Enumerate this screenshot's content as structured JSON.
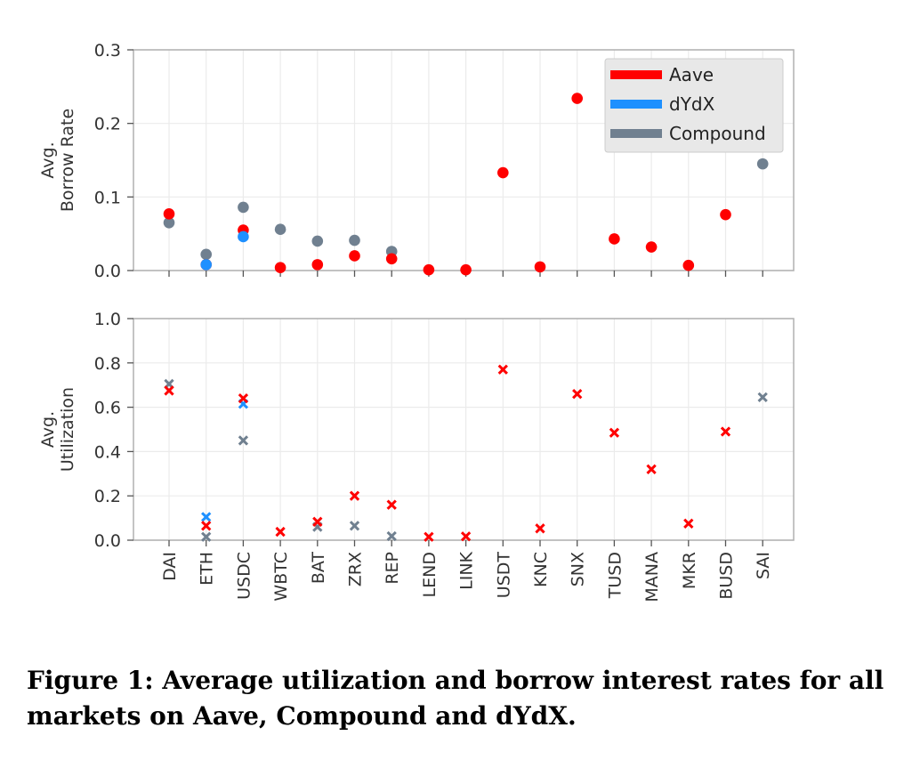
{
  "caption": "Figure 1: Average utilization and borrow interest rates for all markets on Aave, Compound and dYdX.",
  "colors": {
    "Aave": "#ff0000",
    "dYdX": "#1e90ff",
    "Compound": "#708090"
  },
  "chart_data": [
    {
      "type": "scatter",
      "marker": "circle",
      "ylabel": [
        "Avg.",
        "Borrow Rate"
      ],
      "ylim": [
        0,
        0.3
      ],
      "yticks": [
        "0.0",
        "0.1",
        "0.2",
        "0.3"
      ],
      "categories": [
        "DAI",
        "ETH",
        "USDC",
        "WBTC",
        "BAT",
        "ZRX",
        "REP",
        "LEND",
        "LINK",
        "USDT",
        "KNC",
        "SNX",
        "TUSD",
        "MANA",
        "MKR",
        "BUSD",
        "SAI"
      ],
      "grid": true,
      "legend": {
        "placement": "top-right",
        "entries": [
          "Aave",
          "dYdX",
          "Compound"
        ]
      },
      "series": [
        {
          "name": "Compound",
          "values": [
            0.065,
            0.022,
            0.086,
            0.056,
            0.04,
            0.041,
            0.026,
            null,
            null,
            null,
            null,
            null,
            null,
            null,
            null,
            null,
            0.145
          ]
        },
        {
          "name": "Aave",
          "values": [
            0.077,
            0.008,
            0.055,
            0.004,
            0.008,
            0.02,
            0.016,
            0.001,
            0.001,
            0.133,
            0.005,
            0.234,
            0.043,
            0.032,
            0.007,
            0.076,
            null
          ]
        },
        {
          "name": "dYdX",
          "values": [
            null,
            0.008,
            0.046,
            null,
            null,
            null,
            null,
            null,
            null,
            null,
            null,
            null,
            null,
            null,
            null,
            null,
            null
          ]
        }
      ]
    },
    {
      "type": "scatter",
      "marker": "x",
      "ylabel": [
        "Avg.",
        "Utilization"
      ],
      "ylim": [
        0,
        1.0
      ],
      "yticks": [
        "0.0",
        "0.2",
        "0.4",
        "0.6",
        "0.8",
        "1.0"
      ],
      "categories": [
        "DAI",
        "ETH",
        "USDC",
        "WBTC",
        "BAT",
        "ZRX",
        "REP",
        "LEND",
        "LINK",
        "USDT",
        "KNC",
        "SNX",
        "TUSD",
        "MANA",
        "MKR",
        "BUSD",
        "SAI"
      ],
      "grid": true,
      "series": [
        {
          "name": "Compound",
          "values": [
            0.705,
            0.015,
            0.45,
            null,
            0.06,
            0.065,
            0.018,
            null,
            null,
            null,
            null,
            null,
            null,
            null,
            null,
            null,
            0.645
          ]
        },
        {
          "name": "dYdX",
          "values": [
            null,
            0.105,
            0.615,
            null,
            null,
            null,
            null,
            null,
            null,
            null,
            null,
            null,
            null,
            null,
            null,
            null,
            null
          ]
        },
        {
          "name": "Aave",
          "values": [
            0.675,
            0.065,
            0.64,
            0.038,
            0.083,
            0.2,
            0.16,
            0.015,
            0.017,
            0.77,
            0.053,
            0.66,
            0.485,
            0.32,
            0.075,
            0.49,
            null
          ]
        }
      ]
    }
  ]
}
